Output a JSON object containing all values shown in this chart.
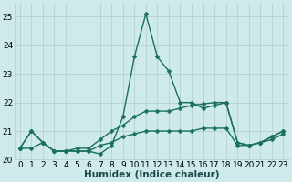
{
  "xlabel": "Humidex (Indice chaleur)",
  "x": [
    0,
    1,
    2,
    3,
    4,
    5,
    6,
    7,
    8,
    9,
    10,
    11,
    12,
    13,
    14,
    15,
    16,
    17,
    18,
    19,
    20,
    21,
    22,
    23
  ],
  "line1": [
    20.4,
    21.0,
    20.6,
    20.3,
    20.3,
    20.3,
    20.3,
    20.2,
    20.5,
    21.5,
    23.6,
    25.1,
    23.6,
    23.1,
    22.0,
    22.0,
    21.8,
    21.9,
    22.0,
    20.6,
    20.5,
    20.6,
    20.8,
    21.0
  ],
  "line2": [
    20.4,
    21.0,
    20.6,
    20.3,
    20.3,
    20.4,
    20.4,
    20.7,
    21.0,
    21.2,
    21.5,
    21.7,
    21.7,
    21.7,
    21.8,
    21.9,
    21.95,
    22.0,
    22.0,
    20.6,
    20.5,
    20.6,
    20.8,
    21.0
  ],
  "line3": [
    20.4,
    20.4,
    20.6,
    20.3,
    20.3,
    20.3,
    20.3,
    20.5,
    20.6,
    20.8,
    20.9,
    21.0,
    21.0,
    21.0,
    21.0,
    21.0,
    21.1,
    21.1,
    21.1,
    20.5,
    20.5,
    20.6,
    20.7,
    20.9
  ],
  "ylim": [
    20.0,
    25.5
  ],
  "yticks": [
    20,
    21,
    22,
    23,
    24,
    25
  ],
  "xlim": [
    -0.5,
    23.5
  ],
  "bg_color": "#ceeaea",
  "grid_color": "#b0cccc",
  "line_color": "#1a7060",
  "markersize": 2.5,
  "linewidth": 1.0,
  "tick_fontsize": 6.5,
  "label_fontsize": 7.5
}
